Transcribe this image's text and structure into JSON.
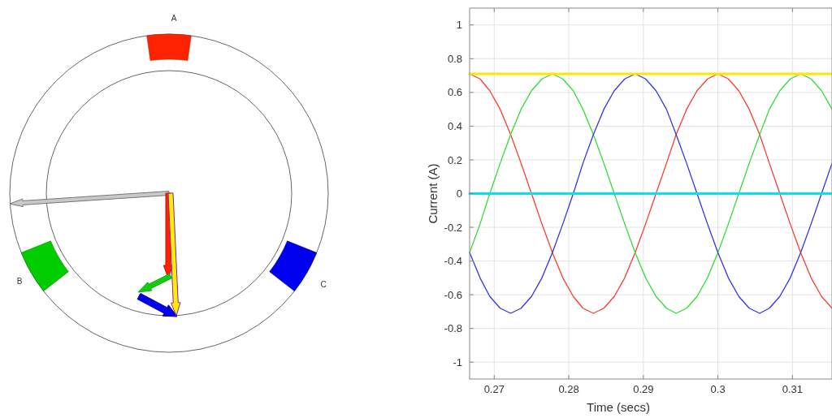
{
  "chart_data": [
    {
      "type": "other",
      "annotations": [
        "A",
        "B",
        "C"
      ]
    },
    {
      "type": "line",
      "xlabel": "Time (secs)",
      "ylabel": "Current (A)",
      "x": [
        0.2667,
        0.2681,
        0.2694,
        0.2708,
        0.2722,
        0.2736,
        0.275,
        0.2764,
        0.2778,
        0.2792,
        0.2806,
        0.2819,
        0.2833,
        0.2847,
        0.2861,
        0.2875,
        0.2889,
        0.2903,
        0.2917,
        0.2931,
        0.2944,
        0.2958,
        0.2972,
        0.2986,
        0.3,
        0.3014,
        0.3028,
        0.3042,
        0.3056,
        0.3069,
        0.3083,
        0.3097,
        0.3111,
        0.3125,
        0.3139,
        0.3153
      ],
      "series": [
        {
          "color": "#ff3b2f",
          "values": [
            0.71,
            0.68,
            0.61,
            0.5,
            0.35,
            0.18,
            0,
            -0.18,
            -0.35,
            -0.5,
            -0.61,
            -0.68,
            -0.71,
            -0.68,
            -0.61,
            -0.5,
            -0.35,
            -0.18,
            0,
            0.18,
            0.35,
            0.5,
            0.61,
            0.68,
            0.71,
            0.68,
            0.61,
            0.5,
            0.35,
            0.18,
            0,
            -0.18,
            -0.35,
            -0.5,
            -0.61,
            -0.68
          ]
        },
        {
          "color": "#33dd33",
          "values": [
            -0.35,
            -0.18,
            0,
            0.18,
            0.35,
            0.5,
            0.61,
            0.68,
            0.71,
            0.68,
            0.61,
            0.5,
            0.35,
            0.18,
            0,
            -0.18,
            -0.35,
            -0.5,
            -0.61,
            -0.68,
            -0.71,
            -0.68,
            -0.61,
            -0.5,
            -0.35,
            -0.18,
            0,
            0.18,
            0.35,
            0.5,
            0.61,
            0.68,
            0.71,
            0.68,
            0.61,
            0.5
          ]
        },
        {
          "color": "#3333ee",
          "values": [
            -0.35,
            -0.5,
            -0.61,
            -0.68,
            -0.71,
            -0.68,
            -0.61,
            -0.5,
            -0.35,
            -0.18,
            0,
            0.18,
            0.35,
            0.5,
            0.61,
            0.68,
            0.71,
            0.68,
            0.61,
            0.5,
            0.35,
            0.18,
            0,
            -0.18,
            -0.35,
            -0.5,
            -0.61,
            -0.68,
            -0.71,
            -0.68,
            -0.61,
            -0.5,
            -0.35,
            -0.18,
            0,
            0.18
          ]
        },
        {
          "color": "#ffe600",
          "values": [
            0.71,
            0.71,
            0.71,
            0.71,
            0.71,
            0.71,
            0.71,
            0.71,
            0.71,
            0.71,
            0.71,
            0.71,
            0.71,
            0.71,
            0.71,
            0.71,
            0.71,
            0.71,
            0.71,
            0.71,
            0.71,
            0.71,
            0.71,
            0.71,
            0.71,
            0.71,
            0.71,
            0.71,
            0.71,
            0.71,
            0.71,
            0.71,
            0.71,
            0.71,
            0.71,
            0.71
          ]
        },
        {
          "color": "#00e5ee",
          "values": [
            0,
            0,
            0,
            0,
            0,
            0,
            0,
            0,
            0,
            0,
            0,
            0,
            0,
            0,
            0,
            0,
            0,
            0,
            0,
            0,
            0,
            0,
            0,
            0,
            0,
            0,
            0,
            0,
            0,
            0,
            0,
            0,
            0,
            0,
            0,
            0
          ]
        }
      ],
      "xlim": [
        0.2667,
        0.3153
      ],
      "xticks": [
        0.27,
        0.28,
        0.29,
        0.3,
        0.31
      ],
      "ylim": [
        -1.1,
        1.1
      ],
      "yticks": [
        -1,
        -0.8,
        -0.6,
        -0.4,
        -0.2,
        0,
        0.2,
        0.4,
        0.6,
        0.8,
        1
      ],
      "grid": true
    }
  ]
}
